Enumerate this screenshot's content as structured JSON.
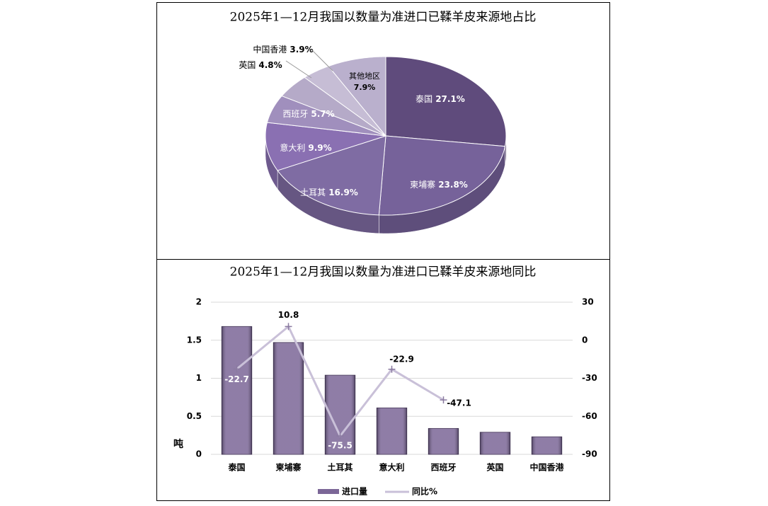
{
  "chart_data": [
    {
      "type": "pie",
      "title": "2025年1—12月我国以数量为准进口已鞣羊皮来源地占比",
      "categories": [
        "泰国",
        "柬埔寨",
        "土耳其",
        "意大利",
        "西班牙",
        "英国",
        "中国香港",
        "其他地区"
      ],
      "values": [
        27.1,
        23.8,
        16.9,
        9.9,
        5.7,
        4.8,
        3.9,
        7.9
      ],
      "value_labels": [
        "27.1%",
        "23.8%",
        "16.9%",
        "9.9%",
        "5.7%",
        "4.8%",
        "3.9%",
        "7.9%"
      ],
      "colors": [
        "#5f4b7c",
        "#76629a",
        "#7f6ca3",
        "#8a70b2",
        "#a08fbd",
        "#b5aac8",
        "#c6bdd5",
        "#bab0cd"
      ]
    },
    {
      "type": "bar_line",
      "title": "2025年1—12月我国以数量为准进口已鞣羊皮来源地同比",
      "categories": [
        "泰国",
        "柬埔寨",
        "土耳其",
        "意大利",
        "西班牙",
        "英国",
        "中国香港"
      ],
      "y_label": "吨",
      "series": [
        {
          "name": "进口量",
          "color": "#7b6697",
          "values": [
            1.68,
            1.47,
            1.04,
            0.61,
            0.34,
            0.29,
            0.23
          ]
        },
        {
          "name": "同比%",
          "color": "#c9c0d8",
          "axis": "y2",
          "values": [
            -22.7,
            10.8,
            -75.5,
            -22.9,
            -47.1,
            null,
            null
          ]
        }
      ],
      "ylim": [
        0,
        2
      ],
      "yticks": [
        0,
        0.5,
        1,
        1.5,
        2
      ],
      "y2lim": [
        -90,
        30
      ],
      "y2ticks": [
        -90,
        -60,
        -30,
        0,
        30
      ]
    }
  ]
}
